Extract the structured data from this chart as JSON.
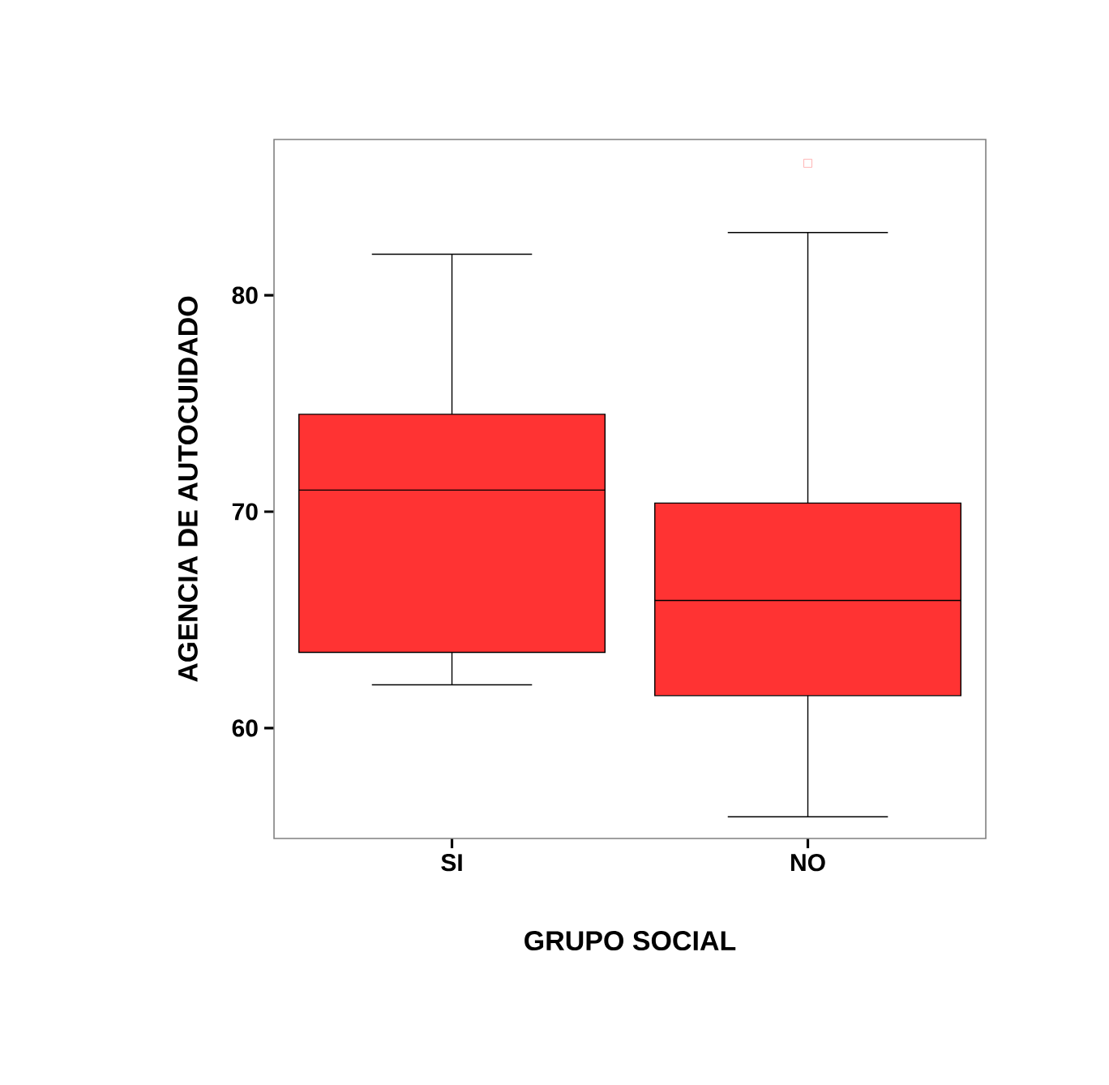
{
  "chart_data": {
    "type": "box",
    "xlabel": "GRUPO SOCIAL",
    "ylabel": "AGENCIA DE AUTOCUIDADO",
    "categories": [
      "SI",
      "NO"
    ],
    "color": "#ff3333",
    "boxes": [
      {
        "low": 62.0,
        "q1": 63.5,
        "median": 71.0,
        "q3": 74.5,
        "high": 81.9
      },
      {
        "low": 55.9,
        "q1": 61.5,
        "median": 65.9,
        "q3": 70.4,
        "high": 82.9,
        "outliers": [
          86.1
        ]
      }
    ],
    "ylim": [
      54.9,
      87.2
    ],
    "yticks": [
      60,
      70,
      80
    ]
  }
}
